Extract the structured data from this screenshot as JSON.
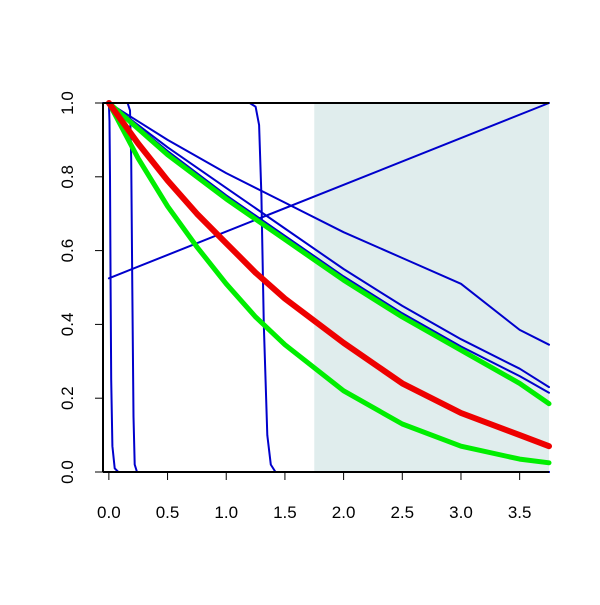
{
  "chart_data": {
    "type": "line",
    "title": "",
    "xlabel": "",
    "ylabel": "",
    "xlim": [
      -0.05,
      3.75
    ],
    "ylim": [
      0,
      1
    ],
    "x_ticks": [
      "0.0",
      "0.5",
      "1.0",
      "1.5",
      "2.0",
      "2.5",
      "3.0",
      "3.5"
    ],
    "y_ticks": [
      "0.0",
      "0.2",
      "0.4",
      "0.6",
      "0.8",
      "1.0"
    ],
    "grid": false,
    "legend": "none",
    "shaded_region": {
      "x_start": 1.75,
      "x_end": 3.75,
      "color": "#e0eded"
    },
    "series": [
      {
        "color": "#0000cc",
        "width": 2,
        "x": [
          0.0,
          0.005,
          0.01,
          0.015,
          0.02,
          0.03,
          0.05,
          0.08,
          3.75
        ],
        "y": [
          1.0,
          0.95,
          0.8,
          0.5,
          0.25,
          0.07,
          0.01,
          0.0,
          0.0
        ]
      },
      {
        "color": "#0000cc",
        "width": 2,
        "x": [
          -0.05,
          0.16,
          0.18,
          0.19,
          0.2,
          0.21,
          0.22,
          0.24,
          3.75
        ],
        "y": [
          1.0,
          1.0,
          0.98,
          0.85,
          0.5,
          0.15,
          0.02,
          0.0,
          0.0
        ]
      },
      {
        "color": "#0000cc",
        "width": 2,
        "x": [
          -0.05,
          1.2,
          1.25,
          1.28,
          1.3,
          1.32,
          1.35,
          1.38,
          1.42,
          3.75
        ],
        "y": [
          1.0,
          1.0,
          0.99,
          0.94,
          0.75,
          0.4,
          0.1,
          0.02,
          0.0,
          0.0
        ]
      },
      {
        "color": "#0000cc",
        "width": 2,
        "x": [
          0.0,
          3.75
        ],
        "y": [
          0.525,
          1.0
        ]
      },
      {
        "color": "#0000cc",
        "width": 2,
        "x": [
          0.0,
          0.5,
          1.0,
          1.5,
          2.0,
          2.5,
          3.0,
          3.5,
          3.75
        ],
        "y": [
          1.0,
          0.9,
          0.81,
          0.73,
          0.65,
          0.58,
          0.51,
          0.385,
          0.345
        ]
      },
      {
        "color": "#0000cc",
        "width": 2,
        "x": [
          0.0,
          0.5,
          1.0,
          1.5,
          2.0,
          2.5,
          3.0,
          3.5,
          3.75
        ],
        "y": [
          1.0,
          0.88,
          0.77,
          0.66,
          0.55,
          0.45,
          0.36,
          0.28,
          0.23
        ]
      },
      {
        "color": "#0000cc",
        "width": 2,
        "x": [
          0.0,
          0.5,
          1.0,
          1.5,
          2.0,
          2.5,
          3.0,
          3.5,
          3.75
        ],
        "y": [
          1.0,
          0.87,
          0.75,
          0.64,
          0.53,
          0.43,
          0.34,
          0.26,
          0.215
        ]
      },
      {
        "color": "#00ee00",
        "width": 5,
        "x": [
          0.0,
          0.5,
          1.0,
          1.5,
          2.0,
          2.5,
          3.0,
          3.5,
          3.75
        ],
        "y": [
          1.0,
          0.86,
          0.74,
          0.63,
          0.52,
          0.42,
          0.33,
          0.24,
          0.185
        ]
      },
      {
        "color": "#00ee00",
        "width": 5,
        "x": [
          0.0,
          0.25,
          0.5,
          0.75,
          1.0,
          1.25,
          1.5,
          2.0,
          2.5,
          3.0,
          3.5,
          3.75
        ],
        "y": [
          1.0,
          0.85,
          0.72,
          0.61,
          0.51,
          0.42,
          0.345,
          0.22,
          0.13,
          0.07,
          0.035,
          0.025
        ]
      },
      {
        "color": "#ee0000",
        "width": 6,
        "x": [
          0.0,
          0.25,
          0.5,
          0.75,
          1.0,
          1.25,
          1.5,
          2.0,
          2.5,
          3.0,
          3.5,
          3.75
        ],
        "y": [
          1.0,
          0.89,
          0.79,
          0.7,
          0.62,
          0.54,
          0.47,
          0.35,
          0.24,
          0.16,
          0.1,
          0.07
        ]
      }
    ]
  }
}
